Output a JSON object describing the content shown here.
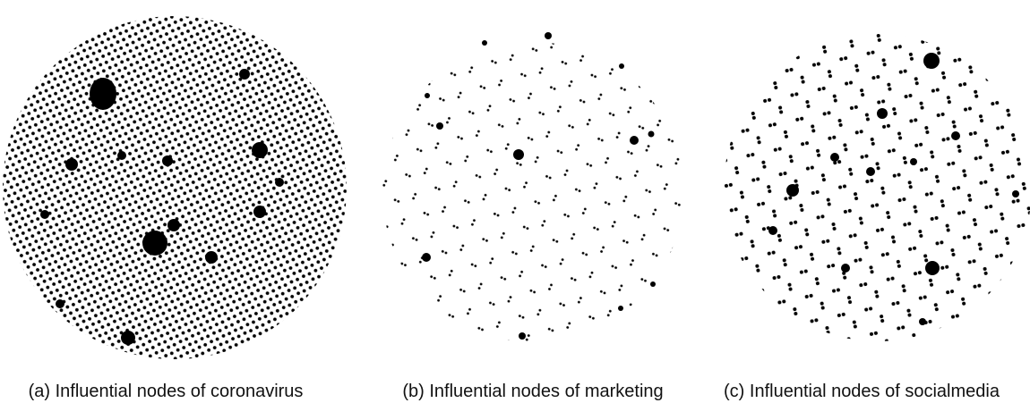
{
  "captions": [
    "(a) Influential nodes of coronavirus",
    "(b) Influential nodes of marketing",
    "(c) Influential nodes of socialmedia"
  ]
}
